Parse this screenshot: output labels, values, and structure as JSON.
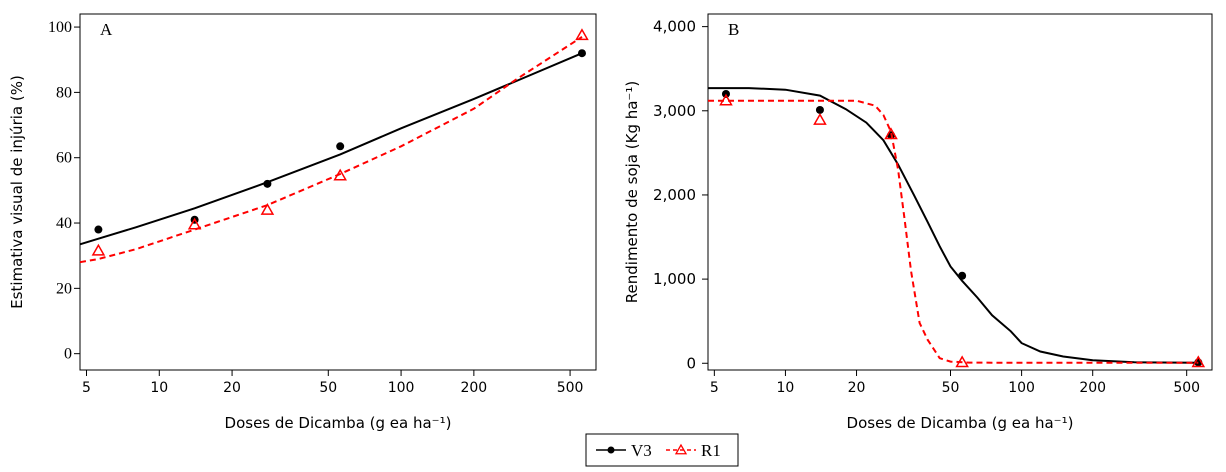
{
  "chart_data": [
    {
      "type": "line",
      "panel_label": "A",
      "xlabel": "Doses de Dicamba (g ea ha⁻¹)",
      "ylabel": "Estimativa visual de injúria (%)",
      "x_scale": "log",
      "xlim": [
        4.7,
        640
      ],
      "ylim": [
        -5,
        104
      ],
      "x_ticks": [
        5,
        10,
        20,
        50,
        100,
        200,
        500
      ],
      "x_tick_labels": [
        "5",
        "10",
        "20",
        "50",
        "100",
        "200",
        "500"
      ],
      "y_ticks": [
        0,
        20,
        40,
        60,
        80,
        100
      ],
      "y_tick_labels": [
        "0",
        "20",
        "40",
        "60",
        "80",
        "100"
      ],
      "grid": false,
      "series": [
        {
          "name": "V3",
          "color": "#000000",
          "marker": "circle",
          "line_style": "solid",
          "points": [
            [
              5.6,
              38
            ],
            [
              14,
              41
            ],
            [
              28,
              52
            ],
            [
              56,
              63.5
            ],
            [
              560,
              92
            ]
          ],
          "fit_curve": [
            [
              4.7,
              33.5
            ],
            [
              5.6,
              35.2
            ],
            [
              8,
              38.7
            ],
            [
              14,
              44.5
            ],
            [
              28,
              52.5
            ],
            [
              56,
              61
            ],
            [
              100,
              69
            ],
            [
              200,
              78
            ],
            [
              300,
              83.5
            ],
            [
              560,
              92
            ]
          ]
        },
        {
          "name": "R1",
          "color": "#ff0000",
          "marker": "triangle-open",
          "line_style": "dashed",
          "points": [
            [
              5.6,
              31.5
            ],
            [
              14,
              39.5
            ],
            [
              28,
              44
            ],
            [
              56,
              54.5
            ],
            [
              560,
              97.5
            ]
          ],
          "fit_curve": [
            [
              4.7,
              28
            ],
            [
              5.6,
              29
            ],
            [
              8,
              32
            ],
            [
              14,
              38
            ],
            [
              28,
              45.5
            ],
            [
              56,
              55
            ],
            [
              100,
              63.5
            ],
            [
              200,
              75
            ],
            [
              300,
              84
            ],
            [
              560,
              97
            ]
          ]
        }
      ]
    },
    {
      "type": "line",
      "panel_label": "B",
      "xlabel": "Doses de Dicamba (g ea ha⁻¹)",
      "ylabel": "Rendimento de soja (Kg ha⁻¹)",
      "x_scale": "log",
      "xlim": [
        4.7,
        640
      ],
      "ylim": [
        -80,
        4150
      ],
      "x_ticks": [
        5,
        10,
        20,
        50,
        100,
        200,
        500
      ],
      "x_tick_labels": [
        "5",
        "10",
        "20",
        "50",
        "100",
        "200",
        "500"
      ],
      "y_ticks": [
        0,
        1000,
        2000,
        3000,
        4000
      ],
      "y_tick_labels": [
        "0",
        "1,000",
        "2,000",
        "3,000",
        "4,000"
      ],
      "grid": false,
      "series": [
        {
          "name": "V3",
          "color": "#000000",
          "marker": "circle",
          "line_style": "solid",
          "points": [
            [
              5.6,
              3200
            ],
            [
              14,
              3010
            ],
            [
              28,
              2710
            ],
            [
              56,
              1040
            ],
            [
              560,
              10
            ]
          ],
          "fit_curve": [
            [
              4.7,
              3270
            ],
            [
              7,
              3270
            ],
            [
              10,
              3250
            ],
            [
              14,
              3180
            ],
            [
              18,
              3020
            ],
            [
              22,
              2860
            ],
            [
              26,
              2650
            ],
            [
              30,
              2360
            ],
            [
              35,
              2000
            ],
            [
              40,
              1680
            ],
            [
              45,
              1390
            ],
            [
              50,
              1150
            ],
            [
              56,
              980
            ],
            [
              65,
              780
            ],
            [
              75,
              570
            ],
            [
              90,
              380
            ],
            [
              100,
              240
            ],
            [
              120,
              140
            ],
            [
              150,
              80
            ],
            [
              200,
              35
            ],
            [
              300,
              12
            ],
            [
              560,
              5
            ]
          ]
        },
        {
          "name": "R1",
          "color": "#ff0000",
          "marker": "triangle-open",
          "line_style": "dashed",
          "points": [
            [
              5.6,
              3120
            ],
            [
              14,
              2890
            ],
            [
              28,
              2720
            ],
            [
              56,
              10
            ],
            [
              560,
              10
            ]
          ],
          "fit_curve": [
            [
              4.7,
              3120
            ],
            [
              15,
              3120
            ],
            [
              20,
              3120
            ],
            [
              24,
              3060
            ],
            [
              26,
              2950
            ],
            [
              28,
              2750
            ],
            [
              30,
              2300
            ],
            [
              32,
              1700
            ],
            [
              34,
              1100
            ],
            [
              37,
              480
            ],
            [
              40,
              280
            ],
            [
              45,
              60
            ],
            [
              50,
              20
            ],
            [
              60,
              8
            ],
            [
              100,
              5
            ],
            [
              200,
              5
            ],
            [
              560,
              5
            ]
          ]
        }
      ]
    }
  ],
  "legend": {
    "placement": "bottom-center",
    "items": [
      {
        "label": "V3",
        "color": "#000000",
        "marker": "circle",
        "line_style": "solid"
      },
      {
        "label": "R1",
        "color": "#ff0000",
        "marker": "triangle-open",
        "line_style": "dashed"
      }
    ]
  }
}
